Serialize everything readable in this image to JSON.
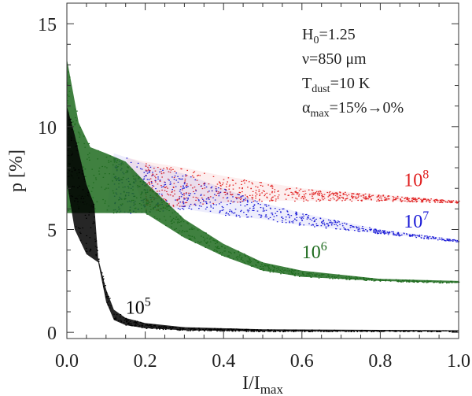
{
  "chart_data": {
    "type": "scatter",
    "title": "",
    "xlabel": "I/I",
    "xlabel_sub": "max",
    "ylabel": "p [%]",
    "xlim": [
      0.0,
      1.0
    ],
    "ylim": [
      -0.3,
      16.0
    ],
    "x_ticks": [
      "0.0",
      "0.2",
      "0.4",
      "0.6",
      "0.8",
      "1.0"
    ],
    "y_ticks": [
      "0",
      "5",
      "10",
      "15"
    ],
    "grid": false,
    "annotations": [
      {
        "main": "H",
        "sub": "0",
        "rest": "=1.25"
      },
      {
        "main": "ν=850  μm",
        "sub": "",
        "rest": ""
      },
      {
        "main": "T",
        "sub": "dust",
        "rest": "=10  K"
      },
      {
        "main": "α",
        "sub": "max",
        "rest": "=15%→0%"
      }
    ],
    "series": [
      {
        "name": "10",
        "exp": "5",
        "color": "#000000",
        "label_pos": [
          0.15,
          0.9
        ],
        "upper": [
          [
            0.0,
            11.0
          ],
          [
            0.02,
            9.6
          ],
          [
            0.05,
            7.2
          ],
          [
            0.07,
            6.2
          ],
          [
            0.08,
            3.6
          ],
          [
            0.1,
            2.1
          ],
          [
            0.12,
            1.1
          ],
          [
            0.15,
            0.7
          ],
          [
            0.2,
            0.45
          ],
          [
            0.3,
            0.25
          ],
          [
            0.5,
            0.15
          ],
          [
            1.0,
            0.1
          ]
        ],
        "lower": [
          [
            0.0,
            7.3
          ],
          [
            0.02,
            5.0
          ],
          [
            0.05,
            3.8
          ],
          [
            0.08,
            3.4
          ],
          [
            0.1,
            1.5
          ],
          [
            0.12,
            0.6
          ],
          [
            0.15,
            0.35
          ],
          [
            0.2,
            0.2
          ],
          [
            0.3,
            0.1
          ],
          [
            0.5,
            0.05
          ],
          [
            1.0,
            0.05
          ]
        ]
      },
      {
        "name": "10",
        "exp": "6",
        "color": "#1e6b1e",
        "label_pos": [
          0.6,
          3.6
        ],
        "upper": [
          [
            0.0,
            13.3
          ],
          [
            0.03,
            10.2
          ],
          [
            0.06,
            9.0
          ],
          [
            0.1,
            8.7
          ],
          [
            0.15,
            8.3
          ],
          [
            0.2,
            7.3
          ],
          [
            0.3,
            5.5
          ],
          [
            0.4,
            4.3
          ],
          [
            0.5,
            3.4
          ],
          [
            0.6,
            3.0
          ],
          [
            0.8,
            2.6
          ],
          [
            1.0,
            2.5
          ]
        ],
        "lower": [
          [
            0.0,
            5.8
          ],
          [
            0.2,
            5.8
          ],
          [
            0.3,
            4.6
          ],
          [
            0.4,
            3.7
          ],
          [
            0.5,
            3.0
          ],
          [
            0.6,
            2.7
          ],
          [
            0.8,
            2.5
          ],
          [
            1.0,
            2.4
          ]
        ]
      },
      {
        "name": "10",
        "exp": "7",
        "color": "#1a1ad6",
        "label_pos": [
          0.86,
          5.1
        ],
        "upper": [
          [
            0.12,
            8.7
          ],
          [
            0.2,
            8.2
          ],
          [
            0.3,
            7.7
          ],
          [
            0.4,
            7.0
          ],
          [
            0.5,
            6.3
          ],
          [
            0.6,
            5.8
          ],
          [
            0.8,
            5.0
          ],
          [
            1.0,
            4.5
          ]
        ],
        "lower": [
          [
            0.1,
            5.8
          ],
          [
            0.2,
            5.8
          ],
          [
            0.3,
            6.0
          ],
          [
            0.4,
            5.7
          ],
          [
            0.5,
            5.5
          ],
          [
            0.6,
            5.2
          ],
          [
            0.8,
            4.8
          ],
          [
            1.0,
            4.4
          ]
        ]
      },
      {
        "name": "10",
        "exp": "8",
        "color": "#e02020",
        "label_pos": [
          0.86,
          7.1
        ],
        "upper": [
          [
            0.15,
            8.5
          ],
          [
            0.2,
            8.3
          ],
          [
            0.3,
            8.0
          ],
          [
            0.4,
            7.6
          ],
          [
            0.5,
            7.3
          ],
          [
            0.6,
            7.0
          ],
          [
            0.8,
            6.7
          ],
          [
            1.0,
            6.4
          ]
        ],
        "lower": [
          [
            0.2,
            5.9
          ],
          [
            0.3,
            6.1
          ],
          [
            0.4,
            6.3
          ],
          [
            0.5,
            6.4
          ],
          [
            0.6,
            6.4
          ],
          [
            0.8,
            6.4
          ],
          [
            1.0,
            6.3
          ]
        ]
      }
    ]
  }
}
